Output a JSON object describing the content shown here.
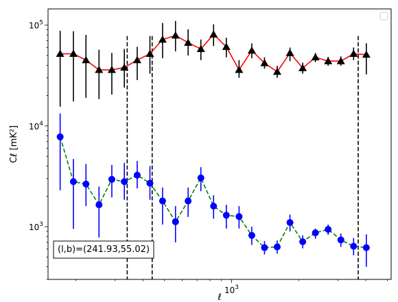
{
  "chart_data": {
    "type": "line",
    "xlabel": "ℓ",
    "ylabel": "Cℓ [mK²]",
    "x_scale": "log",
    "y_scale": "log",
    "xlim": [
      150,
      5200
    ],
    "ylim": [
      300,
      145000
    ],
    "x_tick_labels": [
      {
        "value": 1000,
        "base": "10",
        "exp": "3"
      }
    ],
    "y_tick_labels": [
      {
        "value": 1000,
        "base": "10",
        "exp": "3"
      },
      {
        "value": 10000,
        "base": "10",
        "exp": "4"
      },
      {
        "value": 100000,
        "base": "10",
        "exp": "5"
      }
    ],
    "grid": false,
    "legend": "top-right",
    "vertical_lines": [
      {
        "x": 340,
        "style": "dashed"
      },
      {
        "x": 440,
        "style": "dashed"
      },
      {
        "x": 3700,
        "style": "dashed"
      }
    ],
    "annotation": "(l,b)=(241.93,55.02)",
    "series": [
      {
        "marker": "triangle",
        "line_color": "#ff0000",
        "marker_color": "#000000",
        "errorbar_color": "#000000",
        "line_style": "solid",
        "points": [
          {
            "x": 170,
            "y": 52000,
            "lo": 15500,
            "hi": 88000
          },
          {
            "x": 195,
            "y": 52000,
            "lo": 17500,
            "hi": 87000
          },
          {
            "x": 222,
            "y": 45000,
            "lo": 19000,
            "hi": 80000
          },
          {
            "x": 254,
            "y": 36000,
            "lo": 18500,
            "hi": 57000
          },
          {
            "x": 290,
            "y": 36000,
            "lo": 20500,
            "hi": 53000
          },
          {
            "x": 330,
            "y": 38000,
            "lo": 24000,
            "hi": 58000
          },
          {
            "x": 377,
            "y": 45000,
            "lo": 28500,
            "hi": 61000
          },
          {
            "x": 430,
            "y": 52000,
            "lo": 33000,
            "hi": 78000
          },
          {
            "x": 490,
            "y": 72000,
            "lo": 47000,
            "hi": 105000
          },
          {
            "x": 560,
            "y": 79000,
            "lo": 55000,
            "hi": 110000
          },
          {
            "x": 638,
            "y": 67000,
            "lo": 50000,
            "hi": 91000
          },
          {
            "x": 728,
            "y": 58000,
            "lo": 45000,
            "hi": 72000
          },
          {
            "x": 830,
            "y": 81000,
            "lo": 62000,
            "hi": 102000
          },
          {
            "x": 947,
            "y": 61000,
            "lo": 48000,
            "hi": 75000
          },
          {
            "x": 1080,
            "y": 36000,
            "lo": 30000,
            "hi": 45000
          },
          {
            "x": 1232,
            "y": 56000,
            "lo": 47000,
            "hi": 66000
          },
          {
            "x": 1405,
            "y": 42000,
            "lo": 37000,
            "hi": 48000
          },
          {
            "x": 1602,
            "y": 34500,
            "lo": 30000,
            "hi": 39500
          },
          {
            "x": 1828,
            "y": 53000,
            "lo": 44000,
            "hi": 60000
          },
          {
            "x": 2085,
            "y": 37500,
            "lo": 33000,
            "hi": 42500
          },
          {
            "x": 2378,
            "y": 48000,
            "lo": 43000,
            "hi": 53000
          },
          {
            "x": 2712,
            "y": 44000,
            "lo": 39500,
            "hi": 48500
          },
          {
            "x": 3093,
            "y": 44000,
            "lo": 39500,
            "hi": 49000
          },
          {
            "x": 3528,
            "y": 52000,
            "lo": 45000,
            "hi": 60000
          },
          {
            "x": 4024,
            "y": 51000,
            "lo": 32500,
            "hi": 66000
          }
        ]
      },
      {
        "marker": "circle",
        "line_color": "#008000",
        "marker_color": "#0000ff",
        "errorbar_color": "#0000ff",
        "line_style": "dashed",
        "points": [
          {
            "x": 170,
            "y": 7800,
            "lo": 2300,
            "hi": 13300
          },
          {
            "x": 195,
            "y": 2800,
            "lo": 950,
            "hi": 4700
          },
          {
            "x": 222,
            "y": 2650,
            "lo": 1600,
            "hi": 4200
          },
          {
            "x": 254,
            "y": 1650,
            "lo": 780,
            "hi": 2500
          },
          {
            "x": 290,
            "y": 2950,
            "lo": 1950,
            "hi": 4100
          },
          {
            "x": 330,
            "y": 2800,
            "lo": 1850,
            "hi": 4300
          },
          {
            "x": 377,
            "y": 3250,
            "lo": 2400,
            "hi": 4500
          },
          {
            "x": 430,
            "y": 2700,
            "lo": 1850,
            "hi": 4000
          },
          {
            "x": 490,
            "y": 1800,
            "lo": 1050,
            "hi": 2450
          },
          {
            "x": 560,
            "y": 1120,
            "lo": 700,
            "hi": 1600
          },
          {
            "x": 638,
            "y": 1800,
            "lo": 1250,
            "hi": 2450
          },
          {
            "x": 728,
            "y": 3050,
            "lo": 2250,
            "hi": 3900
          },
          {
            "x": 830,
            "y": 1600,
            "lo": 1200,
            "hi": 2050
          },
          {
            "x": 947,
            "y": 1300,
            "lo": 960,
            "hi": 1650
          },
          {
            "x": 1080,
            "y": 1260,
            "lo": 960,
            "hi": 1600
          },
          {
            "x": 1232,
            "y": 820,
            "lo": 660,
            "hi": 1000
          },
          {
            "x": 1405,
            "y": 620,
            "lo": 530,
            "hi": 720
          },
          {
            "x": 1602,
            "y": 630,
            "lo": 540,
            "hi": 730
          },
          {
            "x": 1828,
            "y": 1100,
            "lo": 900,
            "hi": 1320
          },
          {
            "x": 2085,
            "y": 710,
            "lo": 610,
            "hi": 820
          },
          {
            "x": 2378,
            "y": 870,
            "lo": 760,
            "hi": 960
          },
          {
            "x": 2712,
            "y": 940,
            "lo": 830,
            "hi": 1050
          },
          {
            "x": 3093,
            "y": 740,
            "lo": 630,
            "hi": 860
          },
          {
            "x": 3528,
            "y": 640,
            "lo": 520,
            "hi": 770
          },
          {
            "x": 4024,
            "y": 620,
            "lo": 400,
            "hi": 840
          }
        ]
      }
    ]
  }
}
